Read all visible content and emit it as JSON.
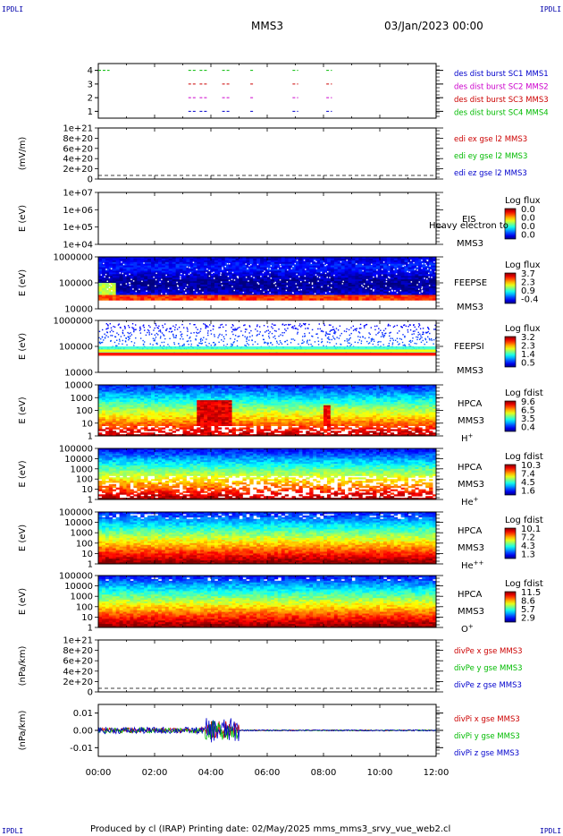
{
  "header": {
    "corner_tl": "IPDLI",
    "corner_tr": "IPDLI",
    "title": "MMS3",
    "date": "03/Jan/2023 00:00"
  },
  "footer": {
    "text": "Produced by cl (IRAP)   Printing date: 02/May/2025   mms_mms3_srvy_vue_web2.cl",
    "corner_bl": "IPDLI",
    "corner_br": "IPDLI"
  },
  "colors": {
    "mms1": "#0000cc",
    "mms2": "#cc00cc",
    "mms3": "#cc0000",
    "mms4": "#00bb00"
  },
  "chart_data": [
    {
      "type": "line",
      "id": "burst",
      "ylim": [
        0.5,
        4.5
      ],
      "yticks": [
        "1",
        "2",
        "3",
        "4"
      ],
      "series": [
        {
          "name": "des dist burst SC1 MMS1",
          "level": 1,
          "color": "#0000cc",
          "intervals": [
            [
              3.2,
              3.5
            ],
            [
              3.6,
              3.9
            ],
            [
              4.4,
              4.7
            ],
            [
              5.4,
              5.5
            ],
            [
              6.9,
              7.1
            ],
            [
              8.1,
              8.3
            ]
          ]
        },
        {
          "name": "des dist burst SC2 MMS2",
          "level": 2,
          "color": "#cc00cc",
          "intervals": [
            [
              3.2,
              3.5
            ],
            [
              3.6,
              3.9
            ],
            [
              4.4,
              4.7
            ],
            [
              5.4,
              5.5
            ],
            [
              6.9,
              7.1
            ],
            [
              8.1,
              8.3
            ]
          ]
        },
        {
          "name": "des dist burst SC3 MMS3",
          "level": 3,
          "color": "#cc0000",
          "intervals": [
            [
              3.2,
              3.5
            ],
            [
              3.6,
              3.9
            ],
            [
              4.4,
              4.7
            ],
            [
              5.4,
              5.5
            ],
            [
              6.9,
              7.1
            ],
            [
              8.1,
              8.3
            ]
          ]
        },
        {
          "name": "des dist burst SC4 MMS4",
          "level": 4,
          "color": "#00bb00",
          "intervals": [
            [
              0.0,
              0.4
            ],
            [
              3.2,
              3.5
            ],
            [
              3.6,
              3.9
            ],
            [
              4.4,
              4.7
            ],
            [
              5.4,
              5.5
            ],
            [
              6.9,
              7.1
            ],
            [
              8.1,
              8.3
            ]
          ]
        }
      ]
    },
    {
      "type": "line",
      "id": "edi",
      "ylabel": "(mV/m)",
      "yticks": [
        "1e+21",
        "8e+20",
        "6e+20",
        "4e+20",
        "2e+20",
        "0"
      ],
      "series": [
        {
          "name": "edi ex gse l2 MMS3",
          "color": "#cc0000"
        },
        {
          "name": "edi ey gse l2 MMS3",
          "color": "#00bb00"
        },
        {
          "name": "edi ez gse l2 MMS3",
          "color": "#0000cc"
        }
      ]
    },
    {
      "type": "heatmap",
      "id": "eis",
      "ylabel": "E (eV)",
      "yticks": [
        "1e+07",
        "1e+06",
        "1e+05",
        "1e+04"
      ],
      "label_lines": [
        "EIS",
        "Heavy electron to",
        "MMS3"
      ],
      "colorbar": {
        "title": "Log flux",
        "values": [
          "0.0",
          "0.0",
          "0.0",
          "0.0"
        ]
      }
    },
    {
      "type": "heatmap",
      "id": "feepse",
      "ylabel": "E (eV)",
      "yticks": [
        "1000000",
        "100000",
        "10000"
      ],
      "label_lines": [
        "FEEPSE",
        "MMS3"
      ],
      "colorbar": {
        "title": "Log flux",
        "values": [
          "3.7",
          "2.3",
          "0.9",
          "-0.4"
        ]
      }
    },
    {
      "type": "heatmap",
      "id": "feepsi",
      "ylabel": "E (eV)",
      "yticks": [
        "1000000",
        "100000",
        "10000"
      ],
      "label_lines": [
        "FEEPSI",
        "MMS3"
      ],
      "colorbar": {
        "title": "Log flux",
        "values": [
          "3.2",
          "2.3",
          "1.4",
          "0.5"
        ]
      }
    },
    {
      "type": "heatmap",
      "id": "hpca-h",
      "ylabel": "E (eV)",
      "yticks": [
        "10000",
        "1000",
        "100",
        "10",
        "1"
      ],
      "label_lines": [
        "HPCA",
        "MMS3"
      ],
      "species": "H",
      "charge": "+",
      "colorbar": {
        "title": "Log fdist",
        "values": [
          "9.6",
          "6.5",
          "3.5",
          "0.4"
        ]
      }
    },
    {
      "type": "heatmap",
      "id": "hpca-he",
      "ylabel": "E (eV)",
      "yticks": [
        "100000",
        "10000",
        "1000",
        "100",
        "10",
        "1"
      ],
      "label_lines": [
        "HPCA",
        "MMS3"
      ],
      "species": "He",
      "charge": "+",
      "colorbar": {
        "title": "Log fdist",
        "values": [
          "10.3",
          "7.4",
          "4.5",
          "1.6"
        ]
      }
    },
    {
      "type": "heatmap",
      "id": "hpca-hepp",
      "ylabel": "E (eV)",
      "yticks": [
        "100000",
        "10000",
        "1000",
        "100",
        "10",
        "1"
      ],
      "label_lines": [
        "HPCA",
        "MMS3"
      ],
      "species": "He",
      "charge": "++",
      "colorbar": {
        "title": "Log fdist",
        "values": [
          "10.1",
          "7.2",
          "4.3",
          "1.3"
        ]
      }
    },
    {
      "type": "heatmap",
      "id": "hpca-o",
      "ylabel": "E (eV)",
      "yticks": [
        "100000",
        "10000",
        "1000",
        "100",
        "10",
        "1"
      ],
      "label_lines": [
        "HPCA",
        "MMS3"
      ],
      "species": "O",
      "charge": "+",
      "colorbar": {
        "title": "Log fdist",
        "values": [
          "11.5",
          "8.6",
          "5.7",
          "2.9"
        ]
      }
    },
    {
      "type": "line",
      "id": "divpe",
      "ylabel": "(nPa/km)",
      "yticks": [
        "1e+21",
        "8e+20",
        "6e+20",
        "4e+20",
        "2e+20",
        "0"
      ],
      "series": [
        {
          "name": "divPe x gse MMS3",
          "color": "#cc0000"
        },
        {
          "name": "divPe y gse MMS3",
          "color": "#00bb00"
        },
        {
          "name": "divPe z gse MMS3",
          "color": "#0000cc"
        }
      ]
    },
    {
      "type": "line",
      "id": "divpi",
      "ylabel": "(nPa/km)",
      "ylim": [
        -0.015,
        0.015
      ],
      "yticks": [
        "0.01",
        "0.00",
        "-0.01"
      ],
      "series": [
        {
          "name": "divPi x gse MMS3",
          "color": "#cc0000"
        },
        {
          "name": "divPi y gse MMS3",
          "color": "#00bb00"
        },
        {
          "name": "divPi z gse MMS3",
          "color": "#0000cc"
        }
      ]
    }
  ],
  "xaxis": {
    "range_hours": [
      0,
      12
    ],
    "ticks": [
      "00:00",
      "02:00",
      "04:00",
      "06:00",
      "08:00",
      "10:00",
      "12:00"
    ]
  }
}
